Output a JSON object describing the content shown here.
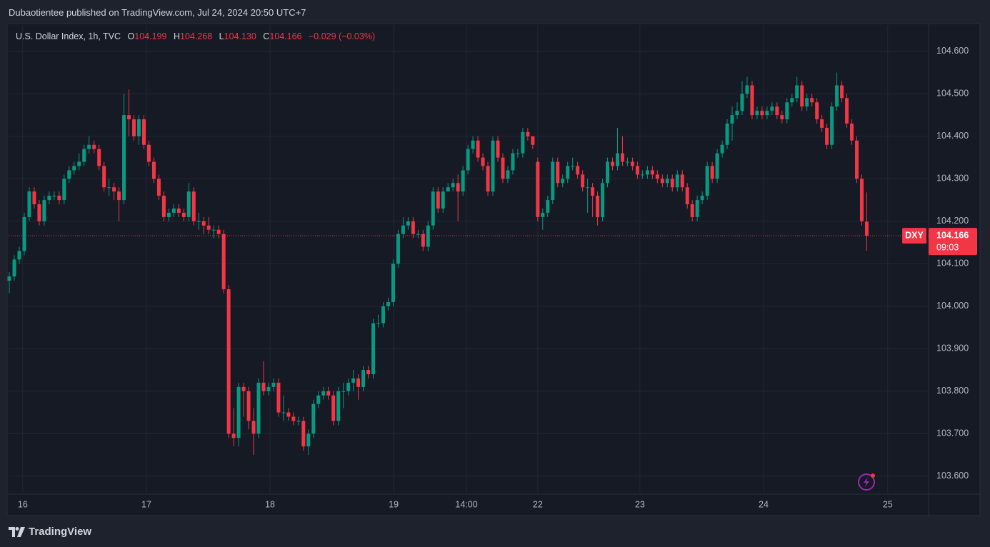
{
  "header": {
    "publisher": "Dubaotientee published on TradingView.com, Jul 24, 2024 20:50 UTC+7"
  },
  "footer": {
    "brand": "TradingView"
  },
  "chart_data": {
    "type": "candlestick",
    "title": "U.S. Dollar Index, 1h, TVC",
    "ohlc_letters": [
      "O",
      "H",
      "L",
      "C"
    ],
    "ohlc_printed": [
      "104.199",
      "104.268",
      "104.130",
      "104.166"
    ],
    "change": "−0.029 (−0.03%)",
    "symbol_short": "DXY",
    "countdown": "09:03",
    "up_color": "#089981",
    "down_color": "#f23645",
    "grid": true,
    "xlim": [
      -0.15,
      184.4
    ],
    "xticks": [
      {
        "value": 2.7,
        "label": "16"
      },
      {
        "value": 27.5,
        "label": "17"
      },
      {
        "value": 52.3,
        "label": "18"
      },
      {
        "value": 77.1,
        "label": "19"
      },
      {
        "value": 91.7,
        "label": "14:00"
      },
      {
        "value": 106,
        "label": "22"
      },
      {
        "value": 126.5,
        "label": "23"
      },
      {
        "value": 151.3,
        "label": "24"
      },
      {
        "value": 176.2,
        "label": "25"
      }
    ],
    "ylim": [
      103.561,
      104.662
    ],
    "yticks": [
      {
        "value": 103.6,
        "label": "103.600"
      },
      {
        "value": 103.7,
        "label": "103.700"
      },
      {
        "value": 103.8,
        "label": "103.800"
      },
      {
        "value": 103.9,
        "label": "103.900"
      },
      {
        "value": 104.0,
        "label": "104.000"
      },
      {
        "value": 104.1,
        "label": "104.100"
      },
      {
        "value": 104.2,
        "label": "104.200"
      },
      {
        "value": 104.3,
        "label": "104.300"
      },
      {
        "value": 104.4,
        "label": "104.400"
      },
      {
        "value": 104.5,
        "label": "104.500"
      },
      {
        "value": 104.6,
        "label": "104.600"
      }
    ],
    "open": [
      104.06,
      104.07,
      104.11,
      104.13,
      104.21,
      104.27,
      104.24,
      104.2,
      104.25,
      104.26,
      104.26,
      104.25,
      104.3,
      104.32,
      104.33,
      104.34,
      104.37,
      104.38,
      104.37,
      104.33,
      104.28,
      104.28,
      104.27,
      104.25,
      104.45,
      104.44,
      104.4,
      104.44,
      104.38,
      104.34,
      104.3,
      104.26,
      104.21,
      104.22,
      104.23,
      104.22,
      104.21,
      104.27,
      104.2,
      104.2,
      104.19,
      104.18,
      104.18,
      104.17,
      104.04,
      103.7,
      103.69,
      103.81,
      103.8,
      103.73,
      103.7,
      103.82,
      103.8,
      103.81,
      103.82,
      103.75,
      103.75,
      103.74,
      103.73,
      103.73,
      103.67,
      103.7,
      103.77,
      103.79,
      103.8,
      103.79,
      103.73,
      103.8,
      103.8,
      103.82,
      103.83,
      103.81,
      103.85,
      103.84,
      103.96,
      103.96,
      104.0,
      104.01,
      104.1,
      104.17,
      104.19,
      104.2,
      104.17,
      104.17,
      104.14,
      104.19,
      104.27,
      104.23,
      104.27,
      104.28,
      104.29,
      104.27,
      104.32,
      104.37,
      104.39,
      104.35,
      104.33,
      104.27,
      104.39,
      104.35,
      104.3,
      104.32,
      104.36,
      104.36,
      104.41,
      104.4,
      104.34,
      104.21,
      104.22,
      104.25,
      104.34,
      104.29,
      104.3,
      104.33,
      104.33,
      104.31,
      104.28,
      104.28,
      104.26,
      104.21,
      104.29,
      104.34,
      104.33,
      104.36,
      104.34,
      104.34,
      104.33,
      104.31,
      104.31,
      104.32,
      104.31,
      104.3,
      104.29,
      104.3,
      104.28,
      104.31,
      104.28,
      104.24,
      104.21,
      104.25,
      104.26,
      104.33,
      104.3,
      104.36,
      104.38,
      104.43,
      104.45,
      104.46,
      104.5,
      104.52,
      104.45,
      104.46,
      104.45,
      104.46,
      104.47,
      104.45,
      104.44,
      104.48,
      104.49,
      104.52,
      104.47,
      104.49,
      104.48,
      104.44,
      104.42,
      104.38,
      104.47,
      104.52,
      104.49,
      104.43,
      104.39,
      104.3,
      104.199
    ],
    "high": [
      104.08,
      104.12,
      104.14,
      104.22,
      104.28,
      104.28,
      104.25,
      104.26,
      104.27,
      104.27,
      104.27,
      104.31,
      104.33,
      104.34,
      104.36,
      104.38,
      104.4,
      104.39,
      104.38,
      104.34,
      104.3,
      104.29,
      104.28,
      104.5,
      104.51,
      104.45,
      104.45,
      104.45,
      104.39,
      104.35,
      104.31,
      104.27,
      104.23,
      104.24,
      104.24,
      104.23,
      104.29,
      104.28,
      104.22,
      104.21,
      104.21,
      104.19,
      104.19,
      104.18,
      104.05,
      103.76,
      103.82,
      103.82,
      103.81,
      103.76,
      103.83,
      103.87,
      103.82,
      103.83,
      103.83,
      103.79,
      103.76,
      103.75,
      103.74,
      103.74,
      103.71,
      103.78,
      103.8,
      103.81,
      103.81,
      103.8,
      103.81,
      103.82,
      103.83,
      103.85,
      103.84,
      103.86,
      103.86,
      103.97,
      103.98,
      104.01,
      104.02,
      104.11,
      104.18,
      104.21,
      104.21,
      104.21,
      104.18,
      104.18,
      104.2,
      104.28,
      104.28,
      104.28,
      104.29,
      104.3,
      104.31,
      104.33,
      104.38,
      104.4,
      104.4,
      104.36,
      104.34,
      104.4,
      104.4,
      104.36,
      104.33,
      104.37,
      104.37,
      104.42,
      104.42,
      104.39,
      104.35,
      104.23,
      104.26,
      104.35,
      104.35,
      104.31,
      104.34,
      104.35,
      104.34,
      104.32,
      104.3,
      104.29,
      104.27,
      104.3,
      104.35,
      104.35,
      104.42,
      104.4,
      104.35,
      104.35,
      104.34,
      104.32,
      104.33,
      104.33,
      104.32,
      104.31,
      104.31,
      104.31,
      104.32,
      104.32,
      104.29,
      104.25,
      104.26,
      104.27,
      104.34,
      104.34,
      104.37,
      104.39,
      104.44,
      104.47,
      104.48,
      104.53,
      104.54,
      104.53,
      104.47,
      104.47,
      104.47,
      104.48,
      104.48,
      104.46,
      104.49,
      104.5,
      104.54,
      104.53,
      104.5,
      104.5,
      104.49,
      104.45,
      104.43,
      104.48,
      104.55,
      104.53,
      104.5,
      104.44,
      104.4,
      104.31,
      104.268
    ],
    "low": [
      104.03,
      104.06,
      104.1,
      104.12,
      104.2,
      104.23,
      104.19,
      104.19,
      104.24,
      104.25,
      104.24,
      104.24,
      104.29,
      104.31,
      104.32,
      104.33,
      104.36,
      104.36,
      104.32,
      104.27,
      104.26,
      104.25,
      104.2,
      104.24,
      104.4,
      104.39,
      104.38,
      104.37,
      104.33,
      104.29,
      104.25,
      104.2,
      104.2,
      104.21,
      104.21,
      104.2,
      104.2,
      104.19,
      104.18,
      104.17,
      104.17,
      104.16,
      104.16,
      104.03,
      103.69,
      103.67,
      103.67,
      103.74,
      103.71,
      103.65,
      103.69,
      103.79,
      103.79,
      103.8,
      103.74,
      103.73,
      103.73,
      103.72,
      103.72,
      103.66,
      103.65,
      103.69,
      103.76,
      103.78,
      103.78,
      103.72,
      103.72,
      103.76,
      103.79,
      103.8,
      103.78,
      103.8,
      103.83,
      103.83,
      103.95,
      103.95,
      103.99,
      104.0,
      104.09,
      104.16,
      104.18,
      104.16,
      104.16,
      104.13,
      104.13,
      104.18,
      104.22,
      104.22,
      104.27,
      104.27,
      104.2,
      104.26,
      104.31,
      104.36,
      104.34,
      104.32,
      104.26,
      104.26,
      104.34,
      104.29,
      104.29,
      104.31,
      104.35,
      104.35,
      104.39,
      104.37,
      104.2,
      104.18,
      104.21,
      104.24,
      104.28,
      104.28,
      104.29,
      104.32,
      104.3,
      104.27,
      104.22,
      104.21,
      104.19,
      104.2,
      104.28,
      104.32,
      104.32,
      104.33,
      104.33,
      104.32,
      104.3,
      104.3,
      104.3,
      104.3,
      104.29,
      104.28,
      104.28,
      104.27,
      104.27,
      104.27,
      104.23,
      104.2,
      104.2,
      104.24,
      104.25,
      104.29,
      104.29,
      104.35,
      104.37,
      104.39,
      104.44,
      104.45,
      104.49,
      104.44,
      104.44,
      104.44,
      104.44,
      104.45,
      104.44,
      104.43,
      104.43,
      104.47,
      104.48,
      104.46,
      104.46,
      104.47,
      104.43,
      104.41,
      104.37,
      104.37,
      104.46,
      104.48,
      104.42,
      104.38,
      104.29,
      104.19,
      104.13
    ],
    "close": [
      104.07,
      104.11,
      104.13,
      104.21,
      104.27,
      104.24,
      104.2,
      104.25,
      104.26,
      104.26,
      104.25,
      104.3,
      104.32,
      104.33,
      104.34,
      104.37,
      104.38,
      104.37,
      104.33,
      104.28,
      104.28,
      104.27,
      104.25,
      104.45,
      104.44,
      104.4,
      104.44,
      104.38,
      104.34,
      104.3,
      104.26,
      104.21,
      104.22,
      104.23,
      104.22,
      104.21,
      104.27,
      104.2,
      104.2,
      104.19,
      104.18,
      104.18,
      104.17,
      104.04,
      103.7,
      103.69,
      103.81,
      103.8,
      103.73,
      103.7,
      103.82,
      103.8,
      103.81,
      103.82,
      103.75,
      103.75,
      103.74,
      103.73,
      103.73,
      103.67,
      103.7,
      103.77,
      103.79,
      103.8,
      103.79,
      103.73,
      103.8,
      103.8,
      103.82,
      103.83,
      103.81,
      103.85,
      103.84,
      103.96,
      103.96,
      104.0,
      104.01,
      104.1,
      104.17,
      104.19,
      104.2,
      104.17,
      104.17,
      104.14,
      104.19,
      104.27,
      104.23,
      104.27,
      104.28,
      104.29,
      104.27,
      104.32,
      104.37,
      104.39,
      104.35,
      104.33,
      104.27,
      104.39,
      104.35,
      104.3,
      104.32,
      104.36,
      104.36,
      104.41,
      104.4,
      104.38,
      104.21,
      104.22,
      104.25,
      104.34,
      104.29,
      104.3,
      104.33,
      104.33,
      104.31,
      104.28,
      104.28,
      104.26,
      104.21,
      104.29,
      104.34,
      104.33,
      104.36,
      104.34,
      104.34,
      104.33,
      104.31,
      104.31,
      104.32,
      104.31,
      104.3,
      104.29,
      104.3,
      104.28,
      104.31,
      104.28,
      104.24,
      104.21,
      104.25,
      104.26,
      104.33,
      104.3,
      104.36,
      104.38,
      104.43,
      104.45,
      104.46,
      104.5,
      104.52,
      104.45,
      104.46,
      104.45,
      104.46,
      104.47,
      104.45,
      104.44,
      104.48,
      104.49,
      104.52,
      104.47,
      104.49,
      104.48,
      104.44,
      104.42,
      104.38,
      104.47,
      104.52,
      104.49,
      104.43,
      104.39,
      104.3,
      104.2,
      104.166
    ]
  }
}
